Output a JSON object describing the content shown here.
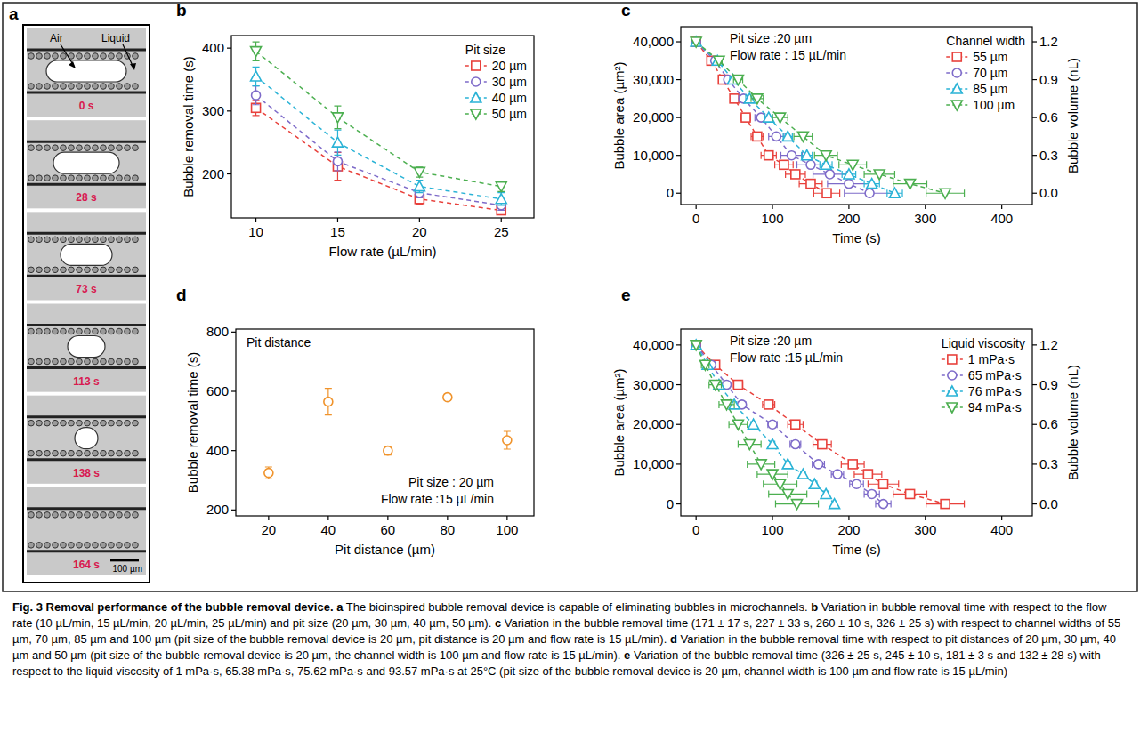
{
  "figure": {
    "panel_a": {
      "panel": "a",
      "air_label": "Air",
      "liquid_label": "Liquid",
      "times": [
        "0 s",
        "28 s",
        "73 s",
        "113 s",
        "138 s",
        "164 s"
      ],
      "scale_label": "100 µm"
    },
    "caption": {
      "title": "Fig. 3 Removal performance of the bubble removal device.",
      "items": [
        {
          "letter": "a",
          "text": "The bioinspired bubble removal device is capable of eliminating bubbles in microchannels."
        },
        {
          "letter": "b",
          "text": "Variation in bubble removal time with respect to the flow rate (10 µL/min, 15 µL/min, 20 µL/min, 25 µL/min) and pit size (20 µm, 30 µm, 40 µm, 50 µm)."
        },
        {
          "letter": "c",
          "text": "Variation in the bubble removal time (171 ± 17 s, 227 ± 33 s, 260 ± 10 s, 326 ± 25 s) with respect to channel widths of 55 µm, 70 µm, 85 µm and 100 µm (pit size of the bubble removal device is 20 µm, pit distance is 20 µm and flow rate is 15 µL/min)."
        },
        {
          "letter": "d",
          "text": "Variation in the bubble removal time with respect to pit distances of 20 µm, 30 µm, 40 µm and 50 µm (pit size of the bubble removal device is 20 µm, the channel width is 100 µm and flow rate is 15 µL/min)."
        },
        {
          "letter": "e",
          "text": "Variation of the bubble removal time (326 ± 25 s, 245 ± 10 s, 181 ± 3 s and 132 ± 28 s) with respect to the liquid viscosity of 1 mPa·s, 65.38 mPa·s, 75.62 mPa·s and 93.57 mPa·s at 25°C (pit size of the bubble removal device is 20 µm, channel width is 100 µm and flow rate is 15 µL/min)"
        }
      ]
    }
  },
  "chart_data": [
    {
      "panel": "b",
      "type": "line",
      "x_label": "Flow rate (µL/min)",
      "y_label": "Bubble removal time (s)",
      "legend_title": "Pit size",
      "legend": "upper right",
      "x": [
        10,
        15,
        20,
        25
      ],
      "xlim": [
        8.5,
        27
      ],
      "xticks": [
        10,
        15,
        20,
        25
      ],
      "ylim": [
        130,
        420
      ],
      "yticks": [
        200,
        300,
        400
      ],
      "series": [
        {
          "name": "20 µm",
          "color": "#e8413c",
          "marker": "square",
          "line_style": "dashed",
          "values": [
            305,
            212,
            160,
            142
          ],
          "errors": [
            12,
            22,
            8,
            7
          ]
        },
        {
          "name": "30 µm",
          "color": "#7e6bc9",
          "marker": "circle",
          "line_style": "dashed",
          "values": [
            325,
            220,
            170,
            150
          ],
          "errors": [
            15,
            15,
            8,
            8
          ]
        },
        {
          "name": "40 µm",
          "color": "#2ab3d6",
          "marker": "triangle-up",
          "line_style": "dashed",
          "values": [
            355,
            250,
            180,
            160
          ],
          "errors": [
            15,
            20,
            10,
            10
          ]
        },
        {
          "name": "50 µm",
          "color": "#4caf50",
          "marker": "triangle-down",
          "line_style": "dashed",
          "values": [
            395,
            290,
            203,
            180
          ],
          "errors": [
            15,
            18,
            8,
            8
          ]
        }
      ]
    },
    {
      "panel": "c",
      "type": "line",
      "x_label": "Time (s)",
      "y_label": "Bubble area (µm²)",
      "y2_label": "Bubble volume (nL)",
      "annotations": [
        "Pit size :20 µm",
        "Flow rate : 15 µL/min"
      ],
      "legend_title": "Channel width",
      "legend": "upper right",
      "xlim": [
        -20,
        440
      ],
      "xticks": [
        0,
        100,
        200,
        300,
        400
      ],
      "ylim": [
        -3000,
        44000
      ],
      "yticks": [
        0,
        {
          "value": 10000,
          "label": "10,000"
        },
        {
          "value": 20000,
          "label": "20,000"
        },
        {
          "value": 30000,
          "label": "30,000"
        },
        {
          "value": 40000,
          "label": "40,000"
        }
      ],
      "y2lim": [
        -0.09,
        1.32
      ],
      "y2ticks": [
        {
          "value": 0,
          "label": "0.0"
        },
        0.3,
        0.6,
        0.9,
        1.2
      ],
      "series": [
        {
          "name": "55 µm",
          "color": "#e8413c",
          "marker": "square",
          "line_style": "dashed",
          "x": [
            0,
            20,
            35,
            50,
            65,
            80,
            95,
            115,
            130,
            150,
            171
          ],
          "values": [
            40000,
            35000,
            30000,
            25000,
            20000,
            15000,
            10000,
            7500,
            5000,
            2500,
            0
          ],
          "x_errors": [
            0,
            3,
            4,
            5,
            6,
            8,
            10,
            12,
            13,
            15,
            17
          ]
        },
        {
          "name": "70 µm",
          "color": "#7e6bc9",
          "marker": "circle",
          "line_style": "dashed",
          "x": [
            0,
            25,
            42,
            62,
            85,
            105,
            125,
            150,
            175,
            200,
            227
          ],
          "values": [
            40000,
            35000,
            30000,
            25000,
            20000,
            15000,
            10000,
            7500,
            5000,
            2500,
            0
          ],
          "x_errors": [
            0,
            4,
            5,
            6,
            8,
            10,
            14,
            18,
            22,
            28,
            33
          ]
        },
        {
          "name": "85 µm",
          "color": "#2ab3d6",
          "marker": "triangle-up",
          "line_style": "dashed",
          "x": [
            0,
            28,
            48,
            70,
            95,
            120,
            145,
            170,
            200,
            230,
            260
          ],
          "values": [
            40000,
            35000,
            30000,
            25000,
            20000,
            15000,
            10000,
            7500,
            5000,
            2500,
            0
          ],
          "x_errors": [
            0,
            3,
            4,
            5,
            5,
            6,
            7,
            8,
            9,
            10,
            10
          ]
        },
        {
          "name": "100 µm",
          "color": "#4caf50",
          "marker": "triangle-down",
          "line_style": "dashed",
          "x": [
            0,
            30,
            55,
            80,
            110,
            140,
            170,
            205,
            240,
            280,
            326
          ],
          "values": [
            40000,
            35000,
            30000,
            25000,
            20000,
            15000,
            10000,
            7500,
            5000,
            2500,
            0
          ],
          "x_errors": [
            0,
            4,
            6,
            8,
            10,
            12,
            15,
            18,
            20,
            22,
            25
          ]
        }
      ]
    },
    {
      "panel": "d",
      "type": "scatter",
      "x_label": "Pit distance (µm)",
      "y_label": "Bubble removal time (s)",
      "annotations": [
        "Pit distance",
        "Pit size : 20 µm",
        "Flow rate :15 µL/min"
      ],
      "xlim": [
        9,
        109
      ],
      "xticks": [
        20,
        40,
        60,
        80,
        100
      ],
      "ylim": [
        180,
        810
      ],
      "yticks": [
        200,
        400,
        600,
        800
      ],
      "series": [
        {
          "color": "#f0932b",
          "marker": "circle",
          "x": [
            20,
            40,
            60,
            80,
            100
          ],
          "values": [
            325,
            565,
            400,
            580,
            435
          ],
          "errors": [
            20,
            45,
            15,
            10,
            30
          ]
        }
      ]
    },
    {
      "panel": "e",
      "type": "line",
      "x_label": "Time (s)",
      "y_label": "Bubble area (µm²)",
      "y2_label": "Bubble volume (nL)",
      "annotations": [
        "Pit size :20 µm",
        "Flow rate :15 µL/min"
      ],
      "legend_title": "Liquid viscosity",
      "legend": "upper right",
      "xlim": [
        -20,
        440
      ],
      "xticks": [
        0,
        100,
        200,
        300,
        400
      ],
      "ylim": [
        -3000,
        44000
      ],
      "yticks": [
        0,
        {
          "value": 10000,
          "label": "10,000"
        },
        {
          "value": 20000,
          "label": "20,000"
        },
        {
          "value": 30000,
          "label": "30,000"
        },
        {
          "value": 40000,
          "label": "40,000"
        }
      ],
      "y2lim": [
        -0.09,
        1.32
      ],
      "y2ticks": [
        {
          "value": 0,
          "label": "0.0"
        },
        0.3,
        0.6,
        0.9,
        1.2
      ],
      "series": [
        {
          "name": "1 mPa·s",
          "color": "#e8413c",
          "marker": "square",
          "line_style": "dashed",
          "x": [
            0,
            25,
            55,
            95,
            130,
            165,
            205,
            225,
            245,
            280,
            326
          ],
          "values": [
            40000,
            35000,
            30000,
            25000,
            20000,
            15000,
            10000,
            7500,
            5000,
            2500,
            0
          ],
          "x_errors": [
            0,
            4,
            6,
            8,
            10,
            12,
            15,
            18,
            20,
            22,
            25
          ]
        },
        {
          "name": "65 mPa·s",
          "color": "#7e6bc9",
          "marker": "circle",
          "line_style": "dashed",
          "x": [
            0,
            20,
            40,
            60,
            100,
            130,
            160,
            185,
            210,
            230,
            245
          ],
          "values": [
            40000,
            35000,
            30000,
            25000,
            20000,
            15000,
            10000,
            7500,
            5000,
            2500,
            0
          ],
          "x_errors": [
            0,
            3,
            4,
            5,
            6,
            7,
            8,
            8,
            9,
            10,
            10
          ]
        },
        {
          "name": "76 mPa·s",
          "color": "#2ab3d6",
          "marker": "triangle-up",
          "line_style": "dashed",
          "x": [
            0,
            15,
            30,
            50,
            75,
            100,
            120,
            140,
            155,
            170,
            181
          ],
          "values": [
            40000,
            35000,
            30000,
            25000,
            20000,
            15000,
            10000,
            7500,
            5000,
            2500,
            0
          ],
          "x_errors": [
            0,
            2,
            3,
            3,
            3,
            3,
            3,
            3,
            3,
            3,
            3
          ]
        },
        {
          "name": "94 mPa·s",
          "color": "#4caf50",
          "marker": "triangle-down",
          "line_style": "dashed",
          "x": [
            0,
            12,
            25,
            40,
            55,
            70,
            85,
            100,
            110,
            120,
            132
          ],
          "values": [
            40000,
            35000,
            30000,
            25000,
            20000,
            15000,
            10000,
            7500,
            5000,
            2500,
            0
          ],
          "x_errors": [
            0,
            5,
            8,
            10,
            12,
            15,
            18,
            20,
            22,
            25,
            28
          ]
        }
      ]
    }
  ]
}
